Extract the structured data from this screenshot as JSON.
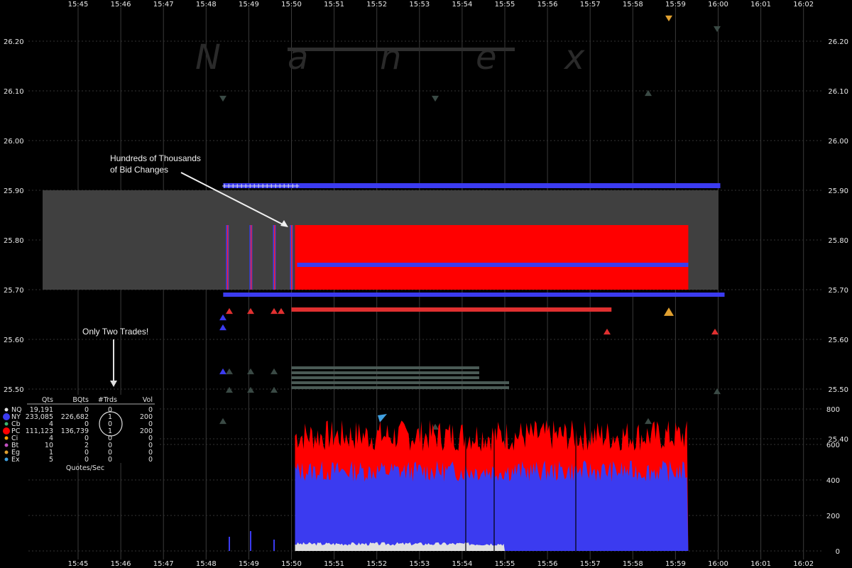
{
  "chart_data": {
    "type": "line",
    "x_ticks": [
      "15:45",
      "15:46",
      "15:47",
      "15:48",
      "15:49",
      "15:50",
      "15:51",
      "15:52",
      "15:53",
      "15:54",
      "15:55",
      "15:56",
      "15:57",
      "15:58",
      "15:59",
      "16:00",
      "16:01",
      "16:02"
    ],
    "y_ticks": [
      "26.20",
      "26.10",
      "26.00",
      "25.90",
      "25.80",
      "25.70",
      "25.60",
      "25.50",
      "25.40"
    ],
    "ylim": [
      25.37,
      26.25
    ],
    "nbbo_band": {
      "x_start": "15:44.5",
      "x_end": "16:00",
      "low": 25.7,
      "high": 25.9
    },
    "series": [
      {
        "name": "NY",
        "color": "#3b3bf0",
        "bid_levels": [
          25.91,
          25.75,
          25.69
        ]
      },
      {
        "name": "PC",
        "color": "#ff0000",
        "bid_levels": [
          25.83,
          25.7,
          25.66
        ]
      }
    ],
    "annotations": {
      "bid_changes": [
        "Hundreds of Thousands",
        "of Bid Changes"
      ],
      "trades": "Only Two Trades!"
    },
    "watermark": [
      "N",
      "a",
      "n",
      "e",
      "x"
    ],
    "volume_panel": {
      "ylabel": "Quotes/Sec",
      "y_ticks": [
        "800",
        "600",
        "400",
        "200",
        "0"
      ],
      "ylim": [
        0,
        800
      ],
      "series": [
        {
          "name": "NY",
          "color": "#3b3bf0",
          "approx_level": 450
        },
        {
          "name": "PC",
          "color": "#ff0000",
          "approx_level": 220
        },
        {
          "name": "NQ",
          "color": "#dddddd",
          "approx_level": 40
        }
      ]
    }
  },
  "legend": {
    "headers": [
      "Qts",
      "BQts",
      "#Trds",
      "Vol"
    ],
    "rows": [
      {
        "ex": "NQ",
        "color": "#e0e0e0",
        "qts": "19,191",
        "bqts": "0",
        "trds": "0",
        "vol": "0"
      },
      {
        "ex": "NY",
        "color": "#3b3bf0",
        "qts": "233,085",
        "bqts": "226,682",
        "trds": "1",
        "vol": "200"
      },
      {
        "ex": "Cb",
        "color": "#3cb371",
        "qts": "4",
        "bqts": "0",
        "trds": "0",
        "vol": "0"
      },
      {
        "ex": "PC",
        "color": "#ff0000",
        "qts": "111,123",
        "bqts": "136,739",
        "trds": "1",
        "vol": "200"
      },
      {
        "ex": "Ci",
        "color": "#ffa500",
        "qts": "4",
        "bqts": "0",
        "trds": "0",
        "vol": "0"
      },
      {
        "ex": "Bt",
        "color": "#c050c0",
        "qts": "10",
        "bqts": "2",
        "trds": "0",
        "vol": "0"
      },
      {
        "ex": "Eg",
        "color": "#e0a030",
        "qts": "1",
        "bqts": "0",
        "trds": "0",
        "vol": "0"
      },
      {
        "ex": "Ex",
        "color": "#40a0e0",
        "qts": "5",
        "bqts": "0",
        "trds": "0",
        "vol": "0"
      }
    ]
  }
}
